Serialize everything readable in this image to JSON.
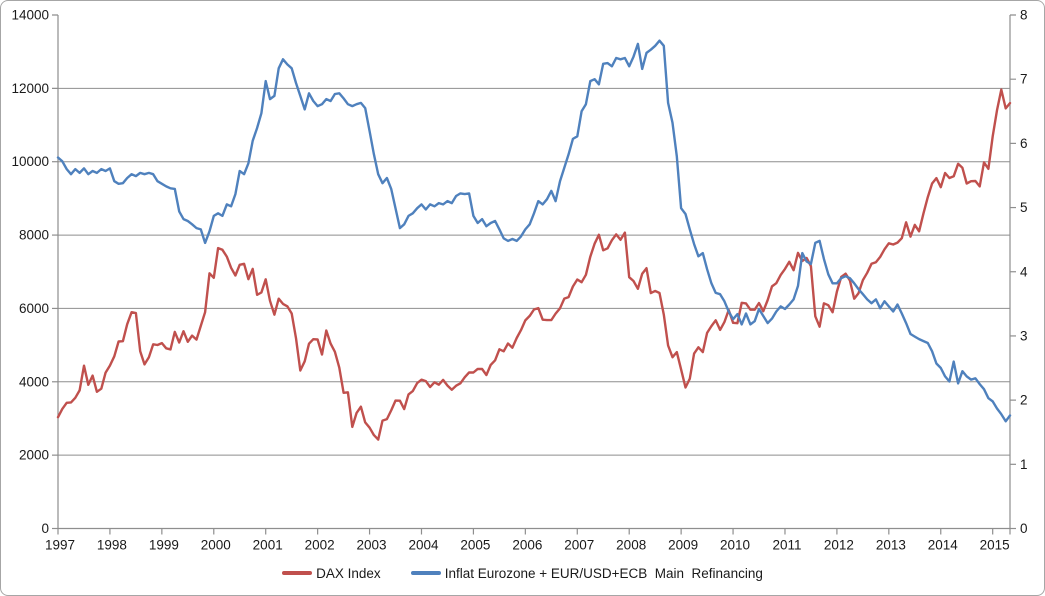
{
  "chart_data": {
    "type": "line",
    "title": "",
    "xlabel": "",
    "ylabel_left": "",
    "ylabel_right": "",
    "x_unit": "month",
    "x_start": "Jan 1997",
    "x_end": "May 2015",
    "x_tick_labels": [
      "1997",
      "1998",
      "1999",
      "2000",
      "2001",
      "2002",
      "2003",
      "2004",
      "2005",
      "2006",
      "2007",
      "2008",
      "2009",
      "2010",
      "2011",
      "2012",
      "2013",
      "2014",
      "2015"
    ],
    "axes": {
      "left": {
        "min": 0,
        "max": 14000,
        "step": 2000,
        "tick_labels": [
          "0",
          "2000",
          "4000",
          "6000",
          "8000",
          "10000",
          "12000",
          "14000"
        ]
      },
      "right": {
        "min": 0,
        "max": 8,
        "step": 1,
        "tick_labels": [
          "0",
          "1",
          "2",
          "3",
          "4",
          "5",
          "6",
          "7",
          "8"
        ]
      }
    },
    "grid": {
      "horizontal": true,
      "values": [
        2000,
        4000,
        6000,
        8000,
        10000,
        12000
      ],
      "color": "#8e8e8e"
    },
    "legend_position": "bottom",
    "series": [
      {
        "name": "DAX Index",
        "axis": "left",
        "color": "#C0504D",
        "values": [
          3035,
          3260,
          3428,
          3438,
          3563,
          3766,
          4438,
          3917,
          4169,
          3727,
          3812,
          4250,
          4442,
          4694,
          5098,
          5107,
          5569,
          5897,
          5874,
          4834,
          4474,
          4671,
          5023,
          5002,
          5056,
          4914,
          4884,
          5360,
          5070,
          5379,
          5090,
          5259,
          5150,
          5525,
          5896,
          6958,
          6835,
          7644,
          7599,
          7414,
          7109,
          6898,
          7190,
          7216,
          6798,
          7077,
          6372,
          6434,
          6795,
          6208,
          5830,
          6265,
          6123,
          6058,
          5861,
          5188,
          4308,
          4559,
          5039,
          5160,
          5154,
          4745,
          5397,
          5041,
          4818,
          4383,
          3700,
          3712,
          2769,
          3152,
          3320,
          2893,
          2748,
          2547,
          2424,
          2942,
          2982,
          3221,
          3487,
          3484,
          3256,
          3655,
          3746,
          3965,
          4058,
          4018,
          3857,
          3985,
          3921,
          4052,
          3896,
          3785,
          3893,
          3960,
          4126,
          4256,
          4254,
          4350,
          4348,
          4184,
          4460,
          4586,
          4886,
          4830,
          5044,
          4929,
          5193,
          5408,
          5674,
          5796,
          5970,
          6009,
          5692,
          5683,
          5682,
          5859,
          6004,
          6269,
          6309,
          6597,
          6789,
          6715,
          6917,
          7409,
          7765,
          8007,
          7584,
          7638,
          7861,
          8019,
          7871,
          8067,
          6851,
          6748,
          6535,
          6948,
          7096,
          6418,
          6479,
          6422,
          5831,
          4988,
          4669,
          4810,
          4338,
          3844,
          4085,
          4769,
          4940,
          4809,
          5332,
          5517,
          5675,
          5414,
          5626,
          5957,
          5609,
          5598,
          6154,
          6136,
          5964,
          5966,
          6148,
          5925,
          6229,
          6601,
          6688,
          6914,
          7077,
          7272,
          7041,
          7514,
          7293,
          7376,
          7158,
          5785,
          5502,
          6141,
          6088,
          5898,
          6459,
          6856,
          6947,
          6761,
          6264,
          6416,
          6772,
          6971,
          7216,
          7260,
          7406,
          7612,
          7776,
          7742,
          7795,
          7914,
          8349,
          7959,
          8276,
          8103,
          8594,
          9034,
          9405,
          9552,
          9306,
          9692,
          9556,
          9603,
          9943,
          9833,
          9407,
          9470,
          9474,
          9327,
          9981,
          9806,
          10694,
          11402,
          11966,
          11454,
          11597
        ]
      },
      {
        "name": "Inflat Eurozone + EUR/USD+ECB  Main  Refinancing",
        "axis": "right",
        "color": "#4F81BD",
        "values": [
          5.78,
          5.72,
          5.6,
          5.52,
          5.6,
          5.54,
          5.61,
          5.52,
          5.57,
          5.54,
          5.6,
          5.57,
          5.61,
          5.41,
          5.37,
          5.38,
          5.46,
          5.52,
          5.49,
          5.54,
          5.52,
          5.54,
          5.52,
          5.41,
          5.37,
          5.33,
          5.3,
          5.29,
          4.94,
          4.82,
          4.79,
          4.74,
          4.68,
          4.66,
          4.45,
          4.63,
          4.87,
          4.91,
          4.87,
          5.05,
          5.02,
          5.21,
          5.57,
          5.52,
          5.69,
          6.04,
          6.24,
          6.47,
          6.97,
          6.69,
          6.74,
          7.17,
          7.31,
          7.23,
          7.17,
          6.94,
          6.74,
          6.53,
          6.78,
          6.66,
          6.58,
          6.61,
          6.69,
          6.66,
          6.77,
          6.78,
          6.7,
          6.61,
          6.58,
          6.61,
          6.63,
          6.55,
          6.19,
          5.83,
          5.52,
          5.38,
          5.46,
          5.29,
          4.99,
          4.68,
          4.74,
          4.87,
          4.91,
          4.99,
          5.05,
          4.97,
          5.05,
          5.02,
          5.07,
          5.05,
          5.1,
          5.07,
          5.18,
          5.22,
          5.21,
          5.22,
          4.87,
          4.76,
          4.82,
          4.71,
          4.76,
          4.79,
          4.66,
          4.52,
          4.48,
          4.51,
          4.48,
          4.55,
          4.66,
          4.74,
          4.91,
          5.1,
          5.05,
          5.13,
          5.26,
          5.1,
          5.41,
          5.62,
          5.83,
          6.07,
          6.11,
          6.5,
          6.61,
          6.97,
          7.0,
          6.92,
          7.24,
          7.25,
          7.2,
          7.33,
          7.31,
          7.33,
          7.2,
          7.35,
          7.55,
          7.16,
          7.41,
          7.46,
          7.52,
          7.6,
          7.52,
          6.63,
          6.32,
          5.8,
          4.99,
          4.9,
          4.66,
          4.43,
          4.24,
          4.29,
          4.04,
          3.82,
          3.67,
          3.65,
          3.54,
          3.38,
          3.26,
          3.34,
          3.18,
          3.35,
          3.18,
          3.23,
          3.42,
          3.31,
          3.2,
          3.27,
          3.38,
          3.46,
          3.42,
          3.49,
          3.57,
          3.78,
          4.29,
          4.16,
          4.12,
          4.45,
          4.48,
          4.2,
          3.96,
          3.82,
          3.82,
          3.9,
          3.93,
          3.9,
          3.82,
          3.73,
          3.65,
          3.57,
          3.51,
          3.57,
          3.43,
          3.54,
          3.46,
          3.38,
          3.49,
          3.35,
          3.2,
          3.03,
          2.99,
          2.95,
          2.92,
          2.89,
          2.76,
          2.57,
          2.5,
          2.37,
          2.29,
          2.6,
          2.26,
          2.45,
          2.37,
          2.32,
          2.34,
          2.25,
          2.17,
          2.03,
          1.98,
          1.87,
          1.78,
          1.67,
          1.76
        ]
      }
    ]
  },
  "colors": {
    "background": "#ffffff",
    "border": "#a6a6a6",
    "grid": "#8e8e8e",
    "text": "#1a1a1a",
    "dax": "#C0504D",
    "inflat": "#4F81BD"
  }
}
